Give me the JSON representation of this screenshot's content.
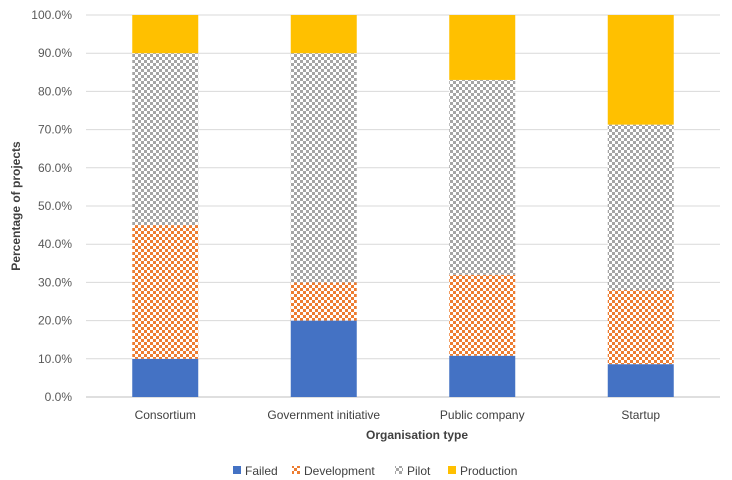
{
  "chart_data": {
    "type": "bar",
    "stacked": true,
    "categories": [
      "Consortium",
      "Government initiative",
      "Public company",
      "Startup"
    ],
    "series": [
      {
        "name": "Failed",
        "values": [
          10.0,
          20.0,
          10.8,
          8.6
        ],
        "color": "#4472C4",
        "pattern": "solid"
      },
      {
        "name": "Development",
        "values": [
          35.0,
          10.0,
          21.2,
          19.4
        ],
        "color": "#ED7D31",
        "pattern": "checker"
      },
      {
        "name": "Pilot",
        "values": [
          45.0,
          60.0,
          51.0,
          43.3
        ],
        "color": "#A5A5A5",
        "pattern": "checker"
      },
      {
        "name": "Production",
        "values": [
          10.0,
          10.0,
          17.0,
          28.7
        ],
        "color": "#FFC000",
        "pattern": "solid"
      }
    ],
    "yticks": [
      "0.0%",
      "10.0%",
      "20.0%",
      "30.0%",
      "40.0%",
      "50.0%",
      "60.0%",
      "70.0%",
      "80.0%",
      "90.0%",
      "100.0%"
    ],
    "ylim": [
      0,
      100
    ],
    "xlabel": "Organisation type",
    "ylabel": "Percentage of projects",
    "grid": true,
    "legend_position": "bottom"
  }
}
